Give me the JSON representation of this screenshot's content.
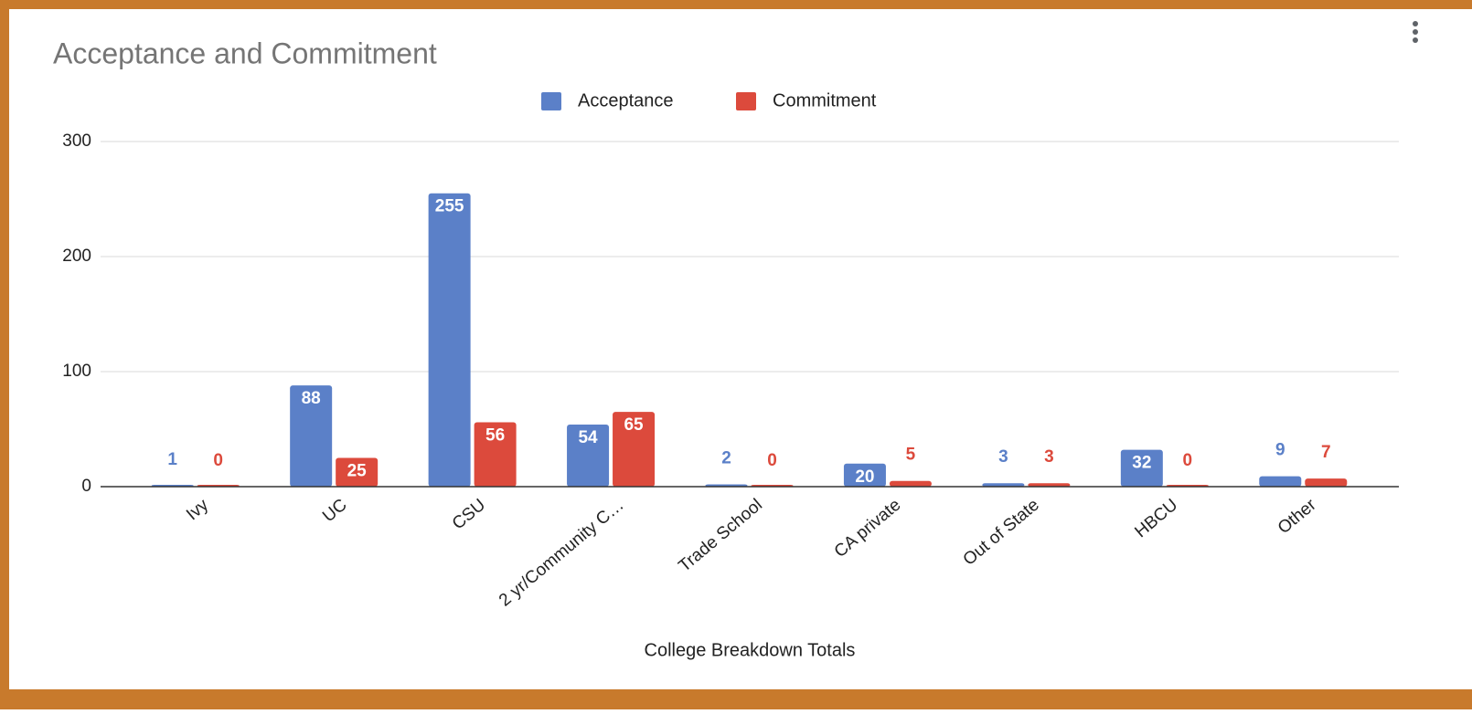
{
  "chart_data": {
    "type": "bar",
    "title": "Acceptance  and Commitment",
    "x_label": "College Breakdown Totals",
    "categories": [
      "Ivy",
      "UC",
      "CSU",
      "2 yr/Community C…",
      "Trade School",
      "CA private",
      "Out of State",
      "HBCU",
      "Other"
    ],
    "series": [
      {
        "name": "Acceptance",
        "color": "#5b80c8",
        "values": [
          1,
          88,
          255,
          54,
          2,
          20,
          3,
          32,
          9
        ]
      },
      {
        "name": "Commitment",
        "color": "#dc4a3c",
        "values": [
          0,
          25,
          56,
          65,
          0,
          5,
          3,
          0,
          7
        ]
      }
    ],
    "ylim": [
      0,
      300
    ],
    "yticks": [
      0,
      100,
      200,
      300
    ],
    "grid": true,
    "legend": "top"
  }
}
